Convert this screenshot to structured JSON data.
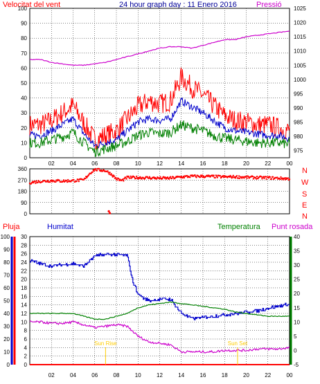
{
  "chart_data": [
    {
      "type": "line",
      "title": "24 hour graph day : 11 Enero 2016",
      "left_axis_label": "Velocitat del vent",
      "right_axis_label": "Pressió",
      "x_ticks": [
        "02",
        "04",
        "06",
        "08",
        "10",
        "12",
        "14",
        "16",
        "18",
        "20",
        "22",
        "00"
      ],
      "y_left_ticks": [
        0,
        10,
        20,
        30,
        40,
        50,
        60,
        70,
        80,
        90,
        100
      ],
      "y_left_range": [
        0,
        100
      ],
      "y_right_ticks": [
        975,
        980,
        985,
        990,
        995,
        1000,
        1005,
        1010,
        1015,
        1020,
        1025
      ],
      "y_right_range": [
        972.5,
        1025
      ],
      "colors": {
        "gust": "#ff0000",
        "avg": "#0000cc",
        "min": "#008000",
        "pressure": "#cc00cc",
        "axis_left": "#ff0000",
        "axis_right": "#cc00cc",
        "title": "#000099"
      },
      "series": [
        {
          "hours": [
            0,
            1,
            2,
            3,
            4,
            5,
            6,
            7,
            8,
            9,
            10,
            11,
            12,
            13,
            14,
            15,
            16,
            17,
            18,
            19,
            20,
            21,
            22,
            23,
            24
          ],
          "values": [
            22,
            22,
            25,
            30,
            35,
            23,
            12,
            15,
            18,
            26,
            34,
            38,
            36,
            38,
            54,
            47,
            42,
            35,
            28,
            25,
            24,
            22,
            22,
            20,
            18
          ]
        },
        {
          "hours": [
            0,
            1,
            2,
            3,
            4,
            5,
            6,
            7,
            8,
            9,
            10,
            11,
            12,
            13,
            14,
            15,
            16,
            17,
            18,
            19,
            20,
            21,
            22,
            23,
            24
          ],
          "values": [
            15,
            15,
            18,
            22,
            26,
            16,
            8,
            10,
            12,
            18,
            24,
            26,
            25,
            26,
            38,
            34,
            30,
            25,
            20,
            18,
            17,
            16,
            15,
            15,
            13
          ]
        },
        {
          "hours": [
            0,
            1,
            2,
            3,
            4,
            5,
            6,
            7,
            8,
            9,
            10,
            11,
            12,
            13,
            14,
            15,
            16,
            17,
            18,
            19,
            20,
            21,
            22,
            23,
            24
          ],
          "values": [
            10,
            10,
            12,
            14,
            17,
            10,
            4,
            6,
            8,
            11,
            15,
            17,
            16,
            17,
            22,
            20,
            18,
            15,
            13,
            12,
            11,
            10,
            10,
            10,
            9
          ]
        },
        {
          "axis": "right",
          "hours": [
            0,
            1,
            2,
            3,
            4,
            5,
            6,
            7,
            8,
            9,
            10,
            11,
            12,
            13,
            14,
            15,
            16,
            17,
            18,
            19,
            20,
            21,
            22,
            23,
            24
          ],
          "values": [
            1007,
            1007,
            1006,
            1005.5,
            1005,
            1005,
            1005.5,
            1006,
            1007,
            1008,
            1009,
            1010,
            1011,
            1011.5,
            1011.5,
            1011,
            1012,
            1013,
            1014,
            1014,
            1015,
            1015.5,
            1016,
            1016.5,
            1017
          ]
        }
      ]
    },
    {
      "type": "scatter",
      "right_labels": [
        "N",
        "W",
        "S",
        "E",
        "N"
      ],
      "y_ticks": [
        0,
        90,
        180,
        270,
        360
      ],
      "y_range": [
        0,
        360
      ],
      "color": "#ff0000",
      "series": [
        {
          "hours": [
            0,
            1,
            2,
            3,
            4,
            5,
            5.5,
            6,
            6.5,
            7,
            7.5,
            8,
            8.5,
            9,
            10,
            11,
            12,
            13,
            14,
            15,
            16,
            17,
            18,
            19,
            20,
            21,
            22,
            23,
            24
          ],
          "values": [
            250,
            260,
            265,
            262,
            265,
            270,
            320,
            355,
            350,
            345,
            320,
            280,
            265,
            290,
            290,
            288,
            285,
            285,
            295,
            300,
            300,
            298,
            295,
            296,
            292,
            290,
            288,
            285,
            280
          ]
        },
        {
          "hours": [
            7.3,
            7.4
          ],
          "values": [
            20,
            5
          ]
        }
      ]
    },
    {
      "type": "line",
      "left_axis_labels": [
        "Pluja",
        "Humitat"
      ],
      "right_axis_labels": [
        "Temperatura",
        "Punt rosada"
      ],
      "humidity_ticks": [
        0,
        10,
        20,
        30,
        40,
        50,
        60,
        70,
        80,
        90,
        100
      ],
      "rain_ticks": [
        0,
        2,
        4,
        6,
        8,
        10,
        12,
        14,
        16,
        18,
        20,
        22,
        24,
        26,
        28,
        30
      ],
      "temp_ticks": [
        -5,
        0,
        5,
        10,
        15,
        20,
        25,
        30,
        35,
        40
      ],
      "temp_range": [
        -5,
        40
      ],
      "annotations": [
        {
          "text": "Sun Rise",
          "hour": 7.0
        },
        {
          "text": "Sun Set",
          "hour": 19.2
        }
      ],
      "colors": {
        "rain": "#ff0000",
        "humidity": "#0000cc",
        "temperature": "#008000",
        "dewpoint": "#cc00cc",
        "sun": "#ffcc00"
      },
      "series": [
        {
          "hours": [
            0,
            1,
            2,
            3,
            4,
            5,
            6,
            7,
            8,
            9,
            9.5,
            10,
            10.5,
            11,
            12,
            13,
            14,
            15,
            16,
            17,
            18,
            19,
            20,
            21,
            22,
            23,
            24
          ],
          "values": [
            81,
            79,
            77,
            78,
            79,
            77,
            85,
            86,
            86,
            85,
            65,
            55,
            52,
            50,
            51,
            51,
            40,
            36,
            37,
            38,
            39,
            40,
            41,
            42,
            44,
            46,
            47
          ]
        },
        {
          "hours": [
            0,
            1,
            2,
            3,
            4,
            5,
            6,
            7,
            8,
            9,
            10,
            11,
            12,
            13,
            14,
            15,
            16,
            17,
            18,
            19,
            20,
            21,
            22,
            23,
            24
          ],
          "values": [
            13,
            13,
            13,
            13,
            13,
            12,
            11,
            11,
            12,
            13,
            15,
            16,
            16.5,
            17,
            16.5,
            16,
            15.5,
            15,
            14.5,
            13.5,
            13,
            12.5,
            12,
            12,
            12
          ]
        },
        {
          "hours": [
            0,
            1,
            2,
            3,
            4,
            5,
            6,
            7,
            8,
            9,
            10,
            11,
            12,
            13,
            14,
            15,
            16,
            17,
            18,
            19,
            20,
            21,
            22,
            23,
            24
          ],
          "values": [
            10,
            10,
            9.5,
            9.5,
            10,
            9,
            8,
            8.5,
            9,
            8.5,
            5,
            3,
            2.5,
            2,
            -0.5,
            -0.5,
            -0.5,
            -0.5,
            0,
            0,
            0,
            0.5,
            0.5,
            0.5,
            1
          ]
        },
        {
          "hours": [
            0,
            24
          ],
          "values": [
            0,
            0
          ]
        }
      ]
    }
  ]
}
